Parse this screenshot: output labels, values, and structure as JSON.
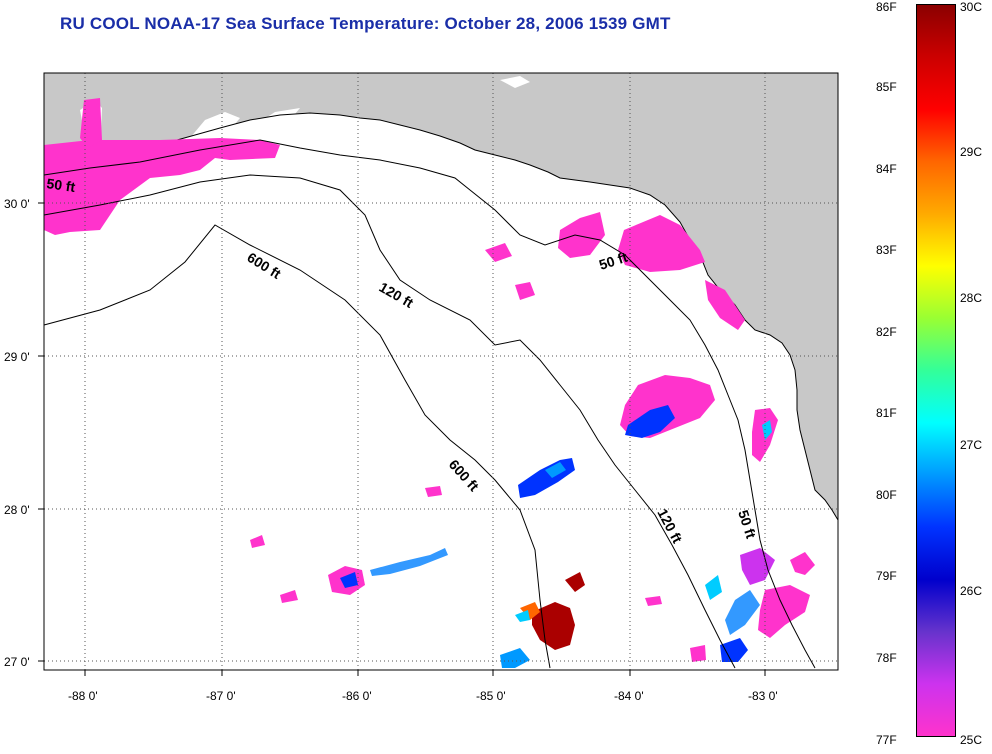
{
  "title": "RU COOL  NOAA-17  Sea Surface Temperature:  October 28, 2006 1539 GMT",
  "map": {
    "lon_labels": [
      "-88 0'",
      "-87 0'",
      "-86 0'",
      "-85 0'",
      "-84 0'",
      "-83 0'"
    ],
    "lat_labels": [
      "30 0'",
      "29 0'",
      "28 0'",
      "27 0'"
    ],
    "contour_labels": [
      "50 ft",
      "600 ft",
      "120 ft",
      "50 ft",
      "600 ft",
      "120 ft",
      "50 ft"
    ],
    "colors": {
      "land": "#c8c8c8",
      "water_no_data": "#ffffff",
      "grid": "#555555",
      "coldest_sst": "#ff33cc"
    }
  },
  "colorbar": {
    "fahrenheit_labels": [
      "86F",
      "85F",
      "84F",
      "83F",
      "82F",
      "81F",
      "80F",
      "79F",
      "78F",
      "77F"
    ],
    "celsius_labels": [
      "30C",
      "29C",
      "28C",
      "27C",
      "26C",
      "25C"
    ],
    "range_f": [
      77,
      86
    ],
    "range_c": [
      25,
      30
    ],
    "gradient_top_to_bottom": [
      "#8b0000",
      "#cc0000",
      "#ff0000",
      "#ff6600",
      "#ffaa00",
      "#ffff00",
      "#99ff33",
      "#33ff99",
      "#00ffff",
      "#0099ff",
      "#0033ff",
      "#0000cc",
      "#6633cc",
      "#cc33ee",
      "#ff33cc"
    ]
  }
}
